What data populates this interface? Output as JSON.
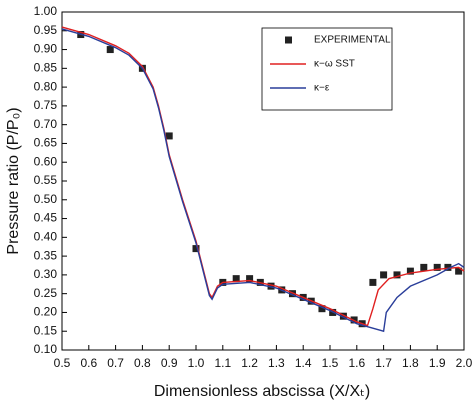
{
  "chart_data": {
    "type": "scatter-line",
    "x_label": "Dimensionless abscissa (X/Xₜ)",
    "y_label": "Pressure ratio (P/P₀)",
    "xlim": [
      0.5,
      2.0
    ],
    "xticks": [
      0.5,
      0.6,
      0.7,
      0.8,
      0.9,
      {
        "value": 1.0,
        "label": "1.0"
      },
      1.1,
      1.2,
      1.3,
      1.4,
      1.5,
      1.6,
      1.7,
      1.8,
      1.9,
      {
        "value": 2.0,
        "label": "2.0"
      }
    ],
    "ylim": [
      0.1,
      1.0
    ],
    "yticks": [
      {
        "value": 0.1,
        "label": "0.10"
      },
      0.15,
      {
        "value": 0.2,
        "label": "0.20"
      },
      0.25,
      {
        "value": 0.3,
        "label": "0.30"
      },
      0.35,
      {
        "value": 0.4,
        "label": "0.40"
      },
      0.45,
      {
        "value": 0.5,
        "label": "0.50"
      },
      0.55,
      {
        "value": 0.6,
        "label": "0.60"
      },
      0.65,
      {
        "value": 0.7,
        "label": "0.70"
      },
      0.75,
      {
        "value": 0.8,
        "label": "0.80"
      },
      0.85,
      {
        "value": 0.9,
        "label": "0.90"
      },
      0.95,
      {
        "value": 1.0,
        "label": "1.00"
      }
    ],
    "grid": false,
    "legend": "upper right",
    "series": [
      {
        "name": "EXPERIMENTAL",
        "kind": "markers",
        "color": "#222222",
        "x": [
          0.57,
          0.68,
          0.8,
          0.9,
          1.0,
          1.1,
          1.15,
          1.2,
          1.24,
          1.28,
          1.32,
          1.36,
          1.4,
          1.43,
          1.47,
          1.51,
          1.55,
          1.59,
          1.62,
          1.66,
          1.7,
          1.75,
          1.8,
          1.85,
          1.9,
          1.94,
          1.98
        ],
        "values": [
          0.94,
          0.9,
          0.85,
          0.67,
          0.37,
          0.28,
          0.29,
          0.29,
          0.28,
          0.27,
          0.26,
          0.25,
          0.24,
          0.23,
          0.21,
          0.2,
          0.19,
          0.18,
          0.17,
          0.28,
          0.3,
          0.3,
          0.31,
          0.32,
          0.32,
          0.32,
          0.31
        ]
      },
      {
        "name": "κ−ω  SST",
        "kind": "line",
        "color": "#e02020",
        "x": [
          0.5,
          0.6,
          0.7,
          0.75,
          0.8,
          0.84,
          0.86,
          0.88,
          0.9,
          0.95,
          1.0,
          1.05,
          1.06,
          1.08,
          1.1,
          1.2,
          1.3,
          1.4,
          1.5,
          1.6,
          1.64,
          1.66,
          1.68,
          1.72,
          1.8,
          1.9,
          1.98,
          2.0
        ],
        "values": [
          0.96,
          0.94,
          0.91,
          0.89,
          0.855,
          0.8,
          0.75,
          0.69,
          0.62,
          0.5,
          0.39,
          0.25,
          0.24,
          0.27,
          0.28,
          0.285,
          0.27,
          0.24,
          0.21,
          0.175,
          0.165,
          0.21,
          0.26,
          0.29,
          0.305,
          0.315,
          0.32,
          0.31
        ]
      },
      {
        "name": "κ−ε",
        "kind": "line",
        "color": "#2a3e9a",
        "x": [
          0.5,
          0.6,
          0.7,
          0.75,
          0.8,
          0.84,
          0.86,
          0.88,
          0.9,
          0.95,
          1.0,
          1.05,
          1.06,
          1.08,
          1.1,
          1.2,
          1.3,
          1.4,
          1.5,
          1.6,
          1.65,
          1.7,
          1.71,
          1.75,
          1.8,
          1.9,
          1.95,
          1.98,
          2.0
        ],
        "values": [
          0.955,
          0.935,
          0.905,
          0.885,
          0.85,
          0.795,
          0.745,
          0.685,
          0.615,
          0.495,
          0.385,
          0.245,
          0.235,
          0.265,
          0.275,
          0.28,
          0.265,
          0.235,
          0.205,
          0.17,
          0.16,
          0.15,
          0.2,
          0.24,
          0.27,
          0.3,
          0.32,
          0.33,
          0.32
        ]
      }
    ]
  }
}
